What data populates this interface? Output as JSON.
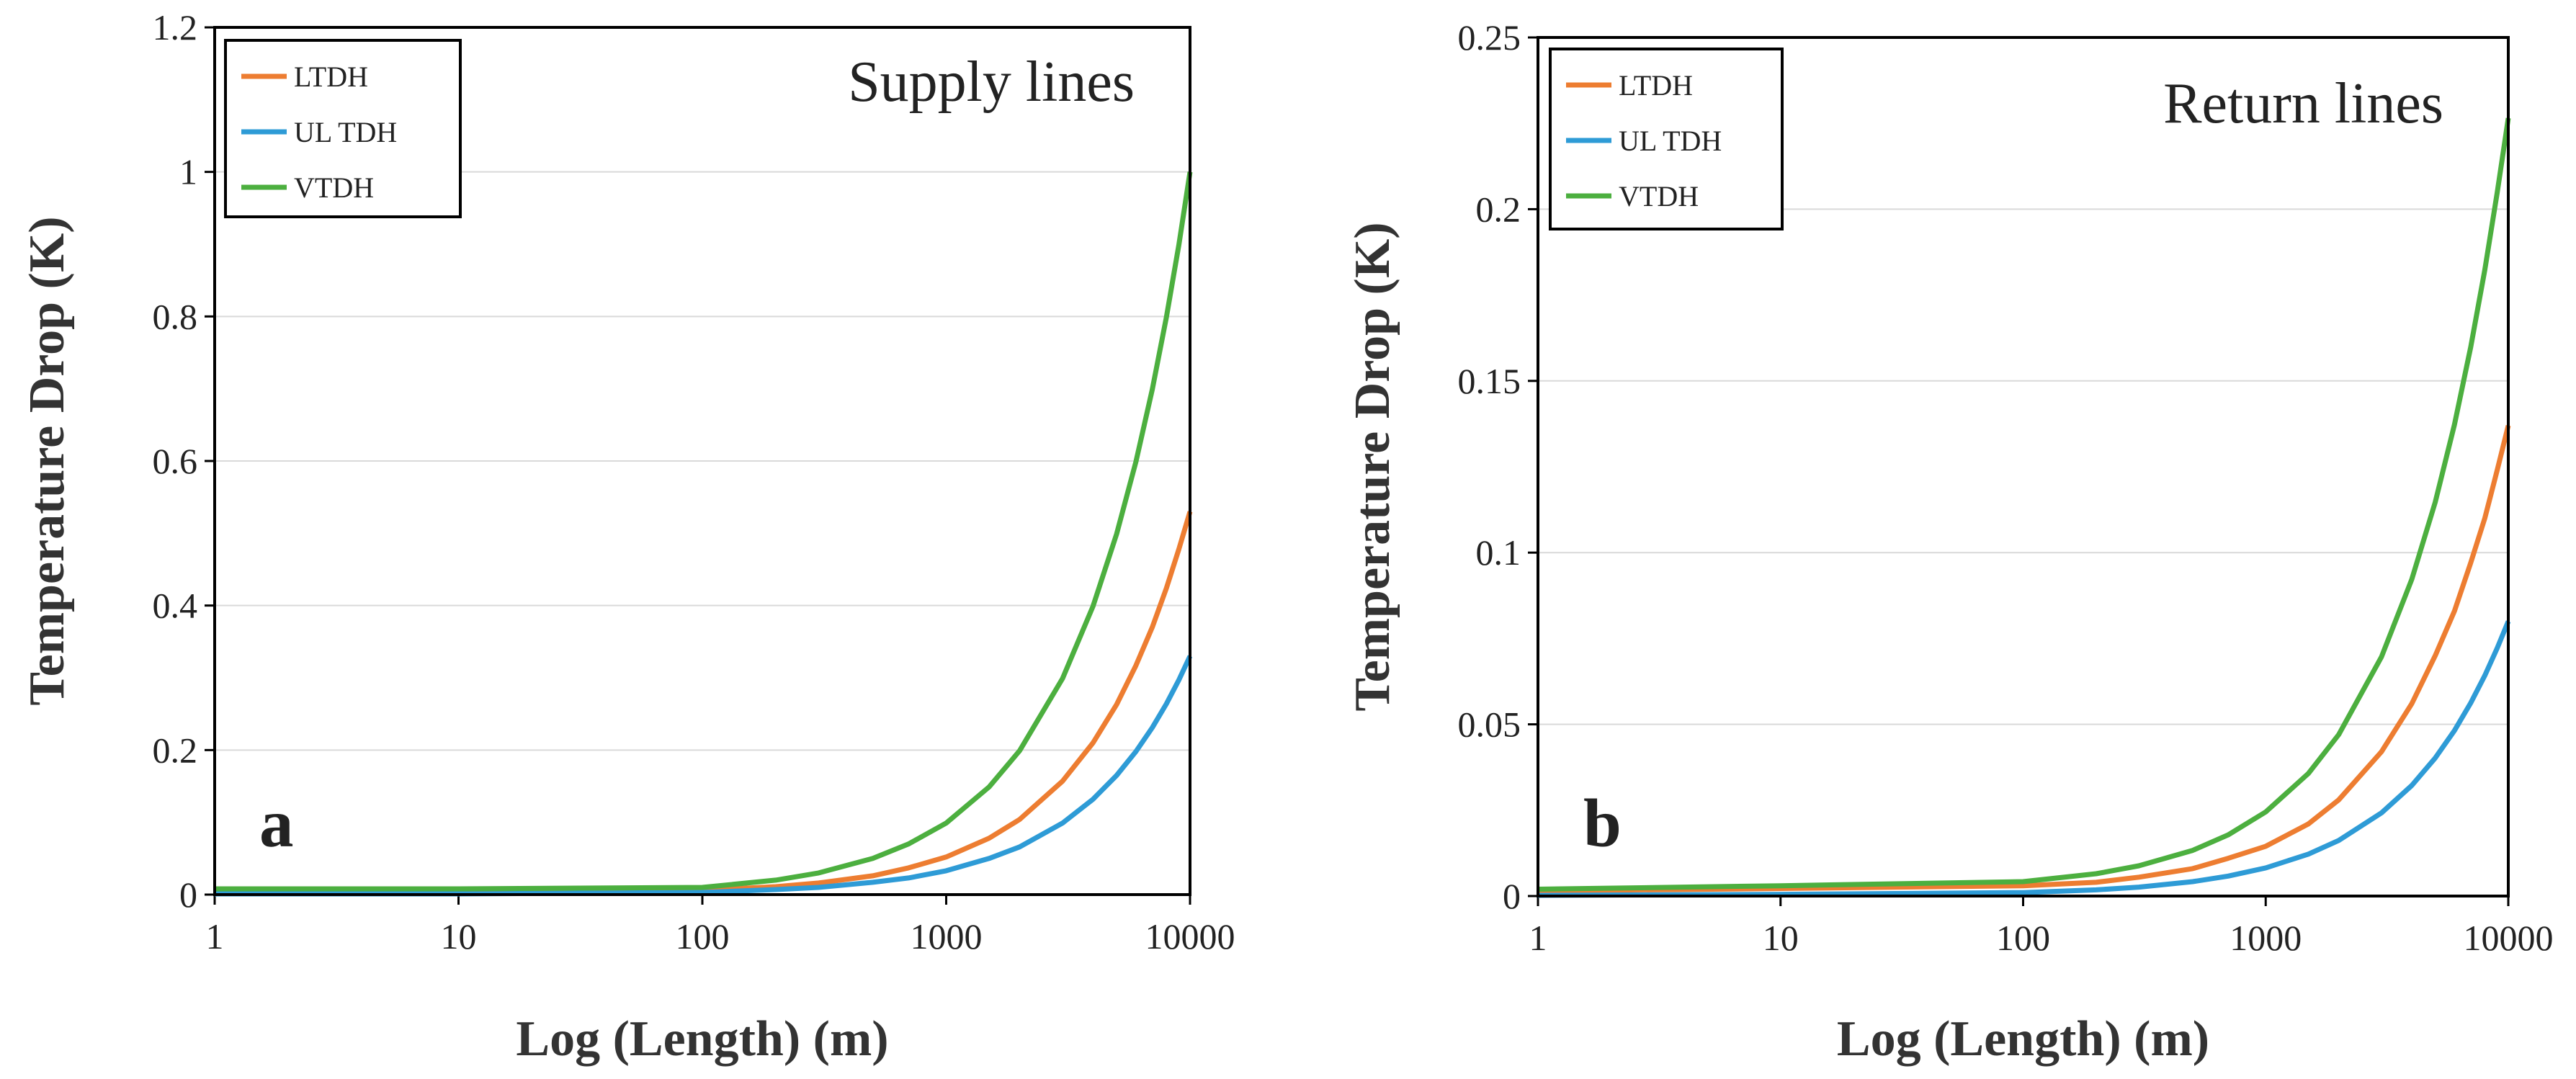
{
  "chart_data": [
    {
      "type": "line",
      "panel_label": "a",
      "title": "Supply lines",
      "xlabel": "Log (Length) (m)",
      "ylabel": "Temperature Drop (K)",
      "x_scale": "log",
      "xlim": [
        1,
        10000
      ],
      "ylim": [
        0,
        1.2
      ],
      "x_ticks": [
        "1",
        "10",
        "100",
        "1000",
        "10000"
      ],
      "y_ticks": [
        "0",
        "0.2",
        "0.4",
        "0.6",
        "0.8",
        "1",
        "1.2"
      ],
      "grid": "horizontal",
      "legend_position": "top-left",
      "x": [
        1,
        10,
        100,
        200,
        300,
        500,
        700,
        1000,
        1500,
        2000,
        3000,
        4000,
        5000,
        6000,
        7000,
        8000,
        9000,
        10000
      ],
      "series": [
        {
          "name": "LTDH",
          "color": "#ED7D31",
          "values": [
            0.005,
            0.005,
            0.006,
            0.011,
            0.016,
            0.026,
            0.037,
            0.052,
            0.078,
            0.104,
            0.157,
            0.21,
            0.263,
            0.317,
            0.37,
            0.424,
            0.478,
            0.53
          ]
        },
        {
          "name": "UL TDH",
          "color": "#2E9BD6",
          "values": [
            0.001,
            0.001,
            0.003,
            0.007,
            0.01,
            0.017,
            0.023,
            0.033,
            0.05,
            0.066,
            0.099,
            0.132,
            0.165,
            0.198,
            0.231,
            0.264,
            0.297,
            0.33
          ]
        },
        {
          "name": "VTDH",
          "color": "#4CAF3F",
          "values": [
            0.008,
            0.008,
            0.01,
            0.02,
            0.03,
            0.05,
            0.07,
            0.099,
            0.149,
            0.199,
            0.299,
            0.399,
            0.499,
            0.599,
            0.699,
            0.799,
            0.899,
            1.0
          ]
        }
      ]
    },
    {
      "type": "line",
      "panel_label": "b",
      "title": "Return lines",
      "xlabel": "Log (Length) (m)",
      "ylabel": "Temperature Drop (K)",
      "x_scale": "log",
      "xlim": [
        1,
        10000
      ],
      "ylim": [
        0,
        0.25
      ],
      "x_ticks": [
        "1",
        "10",
        "100",
        "1000",
        "10000"
      ],
      "y_ticks": [
        "0",
        "0.05",
        "0.1",
        "0.15",
        "0.2",
        "0.25"
      ],
      "grid": "horizontal",
      "legend_position": "top-left",
      "x": [
        1,
        10,
        100,
        200,
        300,
        500,
        700,
        1000,
        1500,
        2000,
        3000,
        4000,
        5000,
        6000,
        7000,
        8000,
        9000,
        10000
      ],
      "series": [
        {
          "name": "LTDH",
          "color": "#ED7D31",
          "values": [
            0.0015,
            0.0022,
            0.003,
            0.004,
            0.0055,
            0.008,
            0.011,
            0.0145,
            0.021,
            0.028,
            0.042,
            0.056,
            0.07,
            0.083,
            0.097,
            0.11,
            0.124,
            0.137
          ]
        },
        {
          "name": "UL TDH",
          "color": "#2E9BD6",
          "values": [
            0.0002,
            0.0005,
            0.001,
            0.0018,
            0.0026,
            0.0042,
            0.0058,
            0.0082,
            0.0122,
            0.0162,
            0.0242,
            0.0322,
            0.0402,
            0.0482,
            0.0562,
            0.0642,
            0.0722,
            0.08
          ]
        },
        {
          "name": "VTDH",
          "color": "#4CAF3F",
          "values": [
            0.002,
            0.003,
            0.0042,
            0.0065,
            0.0088,
            0.0133,
            0.0178,
            0.0245,
            0.0357,
            0.047,
            0.0696,
            0.0922,
            0.1147,
            0.1373,
            0.1598,
            0.1823,
            0.2048,
            0.2265
          ]
        }
      ]
    }
  ]
}
